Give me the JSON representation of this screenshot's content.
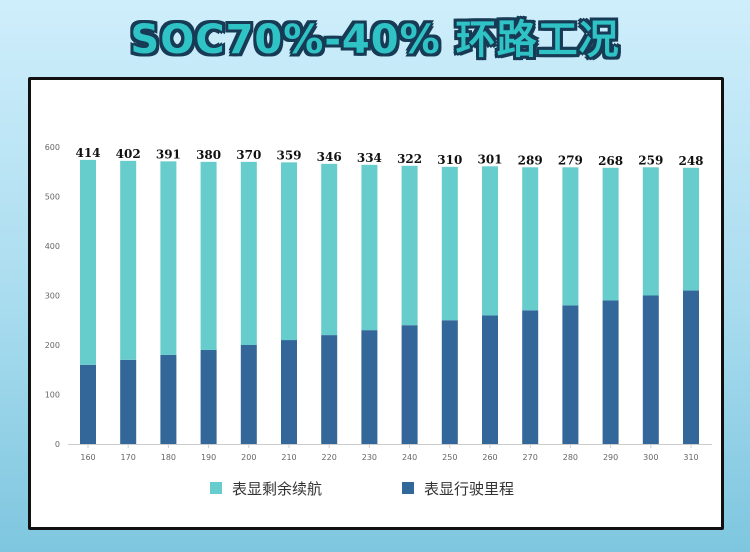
{
  "title": "SOC70%-40% 环路工况",
  "colors": {
    "remaining": "#66cccc",
    "driven": "#336699",
    "title_fill": "#2fc3c6",
    "title_outline": "#173a55"
  },
  "chart_data": {
    "type": "bar",
    "stacked": true,
    "categories": [
      "160",
      "170",
      "180",
      "190",
      "200",
      "210",
      "220",
      "230",
      "240",
      "250",
      "260",
      "270",
      "280",
      "290",
      "300",
      "310"
    ],
    "series": [
      {
        "name": "表显行驶里程",
        "values": [
          160,
          170,
          180,
          190,
          200,
          210,
          220,
          230,
          240,
          250,
          260,
          270,
          280,
          290,
          300,
          310
        ]
      },
      {
        "name": "表显剩余续航",
        "values": [
          414,
          402,
          391,
          380,
          370,
          359,
          346,
          334,
          322,
          310,
          301,
          289,
          279,
          268,
          259,
          248
        ]
      }
    ],
    "data_labels": [
      414,
      402,
      391,
      380,
      370,
      359,
      346,
      334,
      322,
      310,
      301,
      289,
      279,
      268,
      259,
      248
    ],
    "y_ticks": [
      0,
      100,
      200,
      300,
      400,
      500,
      600
    ],
    "ylim": [
      0,
      600
    ],
    "legend_position": "bottom",
    "grid": false
  },
  "legend": [
    {
      "label": "表显剩余续航"
    },
    {
      "label": "表显行驶里程"
    }
  ]
}
